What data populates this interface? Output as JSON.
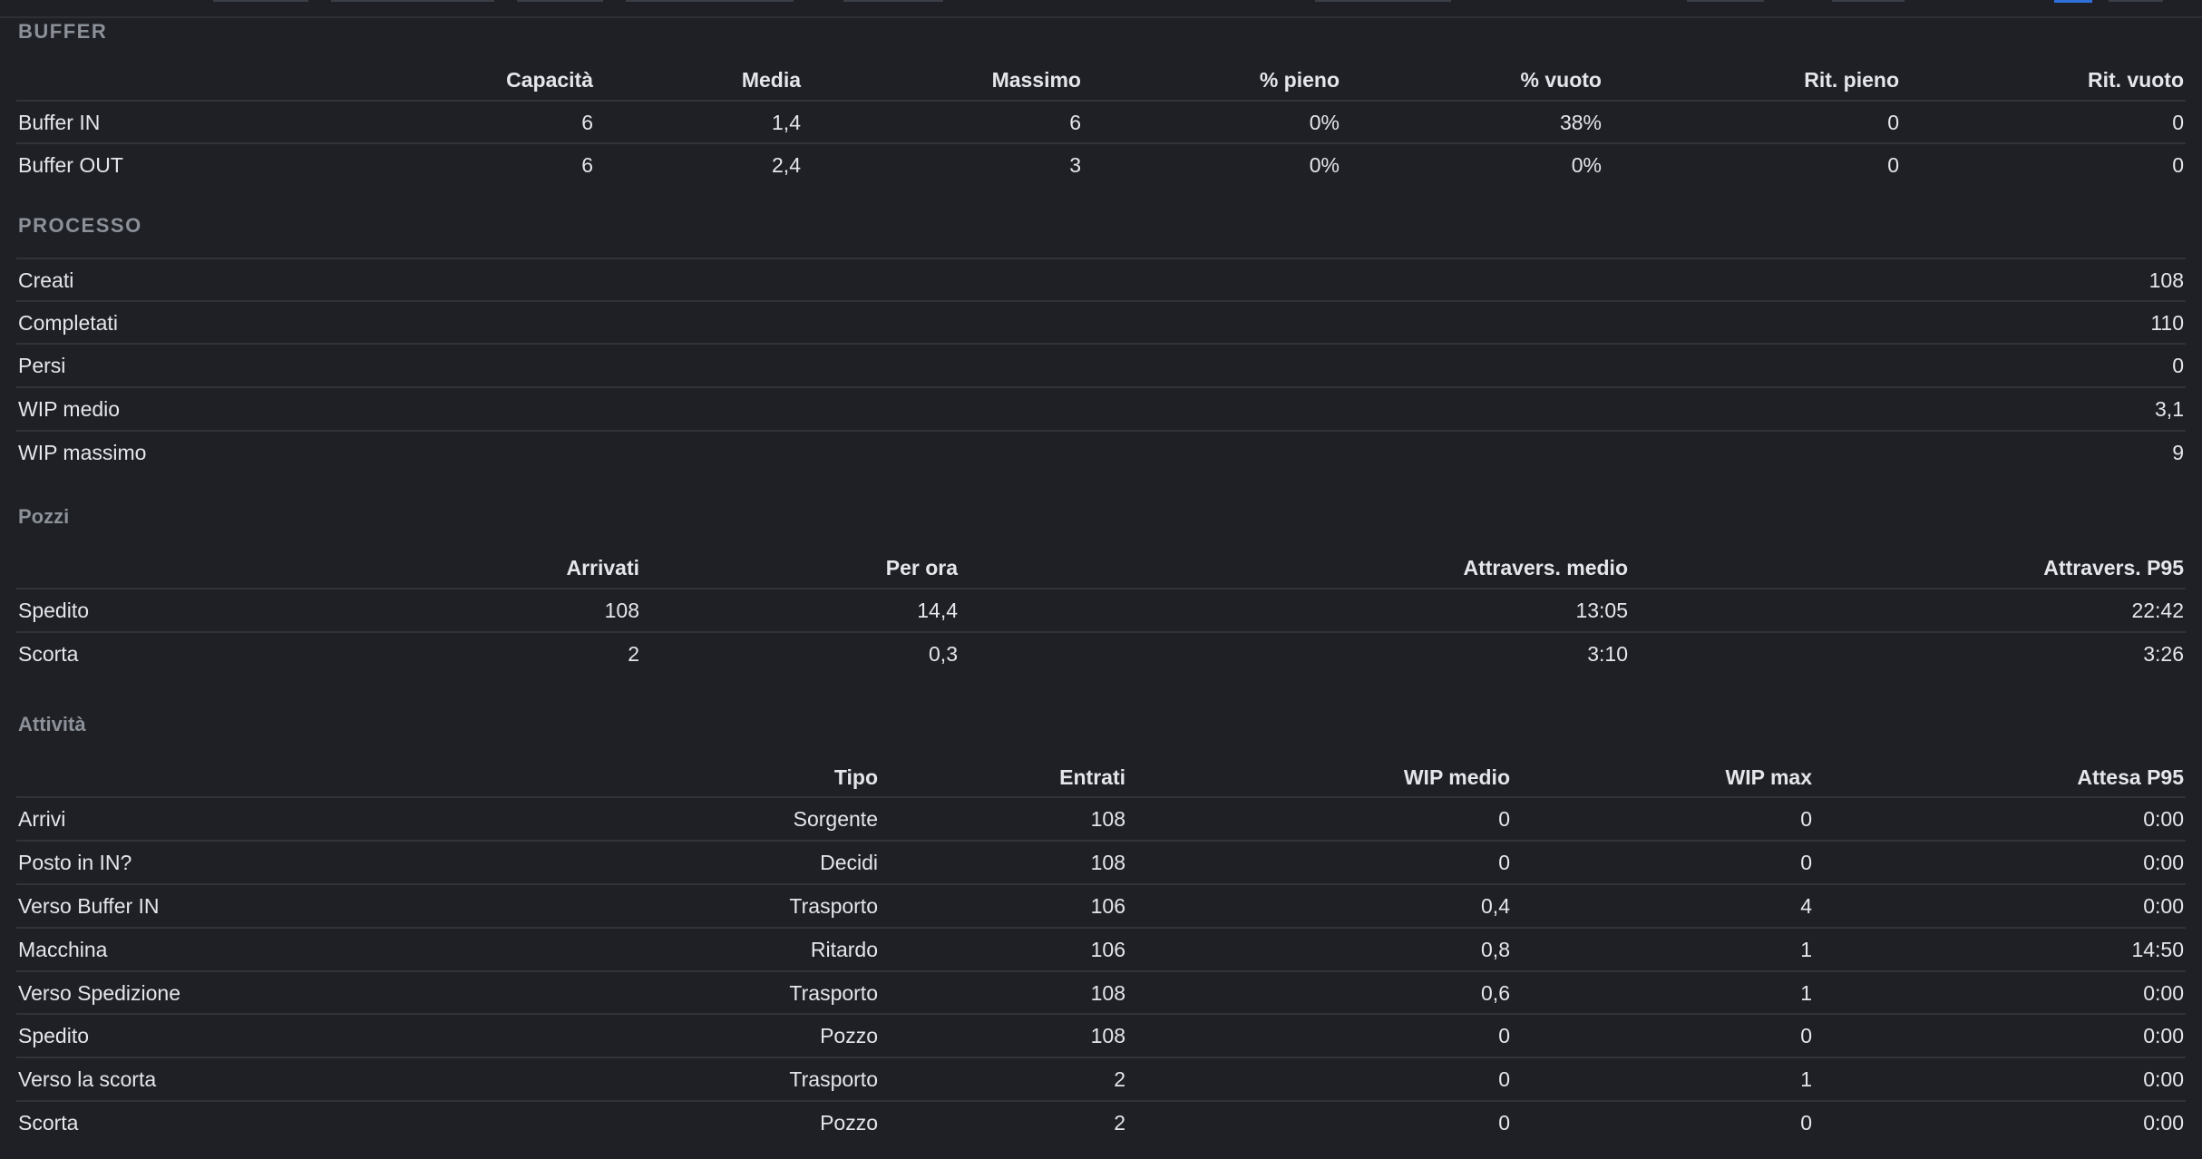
{
  "buffer": {
    "title": "BUFFER",
    "columns": [
      "Capacità",
      "Media",
      "Massimo",
      "% pieno",
      "% vuoto",
      "Rit. pieno",
      "Rit. vuoto"
    ],
    "rows": [
      {
        "name": "Buffer IN",
        "cells": [
          "6",
          "1,4",
          "6",
          "0%",
          "38%",
          "0",
          "0"
        ]
      },
      {
        "name": "Buffer OUT",
        "cells": [
          "6",
          "2,4",
          "3",
          "0%",
          "0%",
          "0",
          "0"
        ]
      }
    ]
  },
  "processo": {
    "title": "PROCESSO",
    "rows": [
      {
        "name": "Creati",
        "value": "108"
      },
      {
        "name": "Completati",
        "value": "110"
      },
      {
        "name": "Persi",
        "value": "0"
      },
      {
        "name": "WIP medio",
        "value": "3,1"
      },
      {
        "name": "WIP massimo",
        "value": "9"
      }
    ]
  },
  "pozzi": {
    "title": "Pozzi",
    "columns": [
      "Arrivati",
      "Per ora",
      "Attravers. medio",
      "Attravers. P95"
    ],
    "rows": [
      {
        "name": "Spedito",
        "cells": [
          "108",
          "14,4",
          "13:05",
          "22:42"
        ]
      },
      {
        "name": "Scorta",
        "cells": [
          "2",
          "0,3",
          "3:10",
          "3:26"
        ]
      }
    ]
  },
  "attivita": {
    "title": "Attività",
    "columns": [
      "Tipo",
      "Entrati",
      "WIP medio",
      "WIP max",
      "Attesa P95"
    ],
    "rows": [
      {
        "name": "Arrivi",
        "cells": [
          "Sorgente",
          "108",
          "0",
          "0",
          "0:00"
        ]
      },
      {
        "name": "Posto in IN?",
        "cells": [
          "Decidi",
          "108",
          "0",
          "0",
          "0:00"
        ]
      },
      {
        "name": "Verso Buffer IN",
        "cells": [
          "Trasporto",
          "106",
          "0,4",
          "4",
          "0:00"
        ]
      },
      {
        "name": "Macchina",
        "cells": [
          "Ritardo",
          "106",
          "0,8",
          "1",
          "14:50"
        ]
      },
      {
        "name": "Verso Spedizione",
        "cells": [
          "Trasporto",
          "108",
          "0,6",
          "1",
          "0:00"
        ]
      },
      {
        "name": "Spedito",
        "cells": [
          "Pozzo",
          "108",
          "0",
          "0",
          "0:00"
        ]
      },
      {
        "name": "Verso la scorta",
        "cells": [
          "Trasporto",
          "2",
          "0",
          "1",
          "0:00"
        ]
      },
      {
        "name": "Scorta",
        "cells": [
          "Pozzo",
          "2",
          "0",
          "0",
          "0:00"
        ]
      }
    ]
  }
}
